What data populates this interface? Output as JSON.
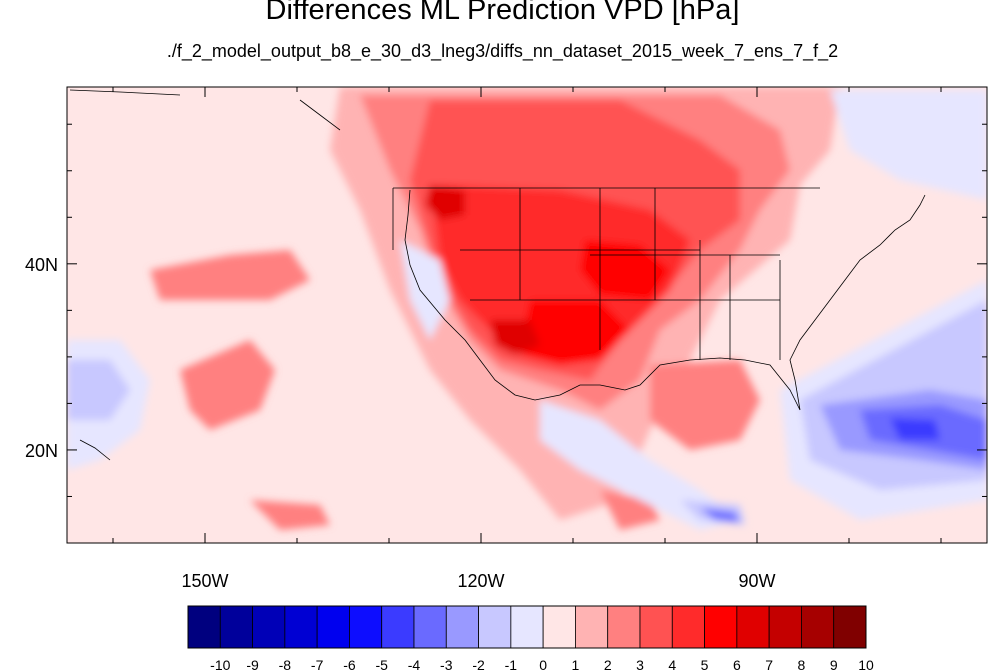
{
  "figure": {
    "title": "Differences ML Prediction VPD [hPa]",
    "subtitle": "./f_2_model_output_b8_e_30_d3_lneg3/diffs_nn_dataset_2015_week_7_ens_7_f_2"
  },
  "map": {
    "lon_range": [
      -165,
      -65
    ],
    "lat_range": [
      10,
      59
    ],
    "lon_ticks": [
      {
        "value": -150,
        "label": "150W"
      },
      {
        "value": -120,
        "label": "120W"
      },
      {
        "value": -90,
        "label": "90W"
      }
    ],
    "lat_ticks": [
      {
        "value": 40,
        "label": "40N"
      },
      {
        "value": 20,
        "label": "20N"
      }
    ]
  },
  "colorbar": {
    "labels": [
      "-10",
      "-9",
      "-8",
      "-7",
      "-6",
      "-5",
      "-4",
      "-3",
      "-2",
      "-1",
      "0",
      "1",
      "2",
      "3",
      "4",
      "5",
      "6",
      "7",
      "8",
      "9",
      "10"
    ],
    "colors": [
      "#00007f",
      "#00009b",
      "#0000b7",
      "#0000d3",
      "#0000ef",
      "#0d0dff",
      "#3b3bff",
      "#6a6aff",
      "#9999ff",
      "#c8c8ff",
      "#e6e6ff",
      "#ffe6e6",
      "#ffb3b3",
      "#ff8080",
      "#ff5252",
      "#ff2b2b",
      "#ff0000",
      "#e00000",
      "#c40000",
      "#a60000",
      "#800000"
    ]
  }
}
